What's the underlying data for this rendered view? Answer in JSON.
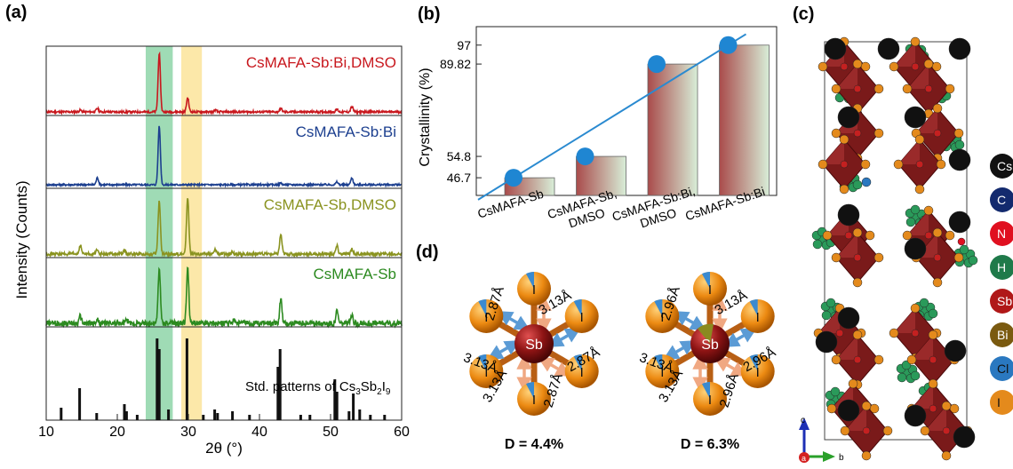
{
  "panel_a": {
    "label": "(a)",
    "ylabel": "Intensity (Counts)",
    "xlabel": "2θ (°)",
    "xticks": [
      "10",
      "20",
      "30",
      "40",
      "50",
      "60"
    ],
    "traces": [
      {
        "name": "CsMAFA-Sb:Bi,DMSO",
        "color": "#c8181e"
      },
      {
        "name": "CsMAFA-Sb:Bi",
        "color": "#1c3f8f"
      },
      {
        "name": "CsMAFA-Sb,DMSO",
        "color": "#8a9320"
      },
      {
        "name": "CsMAFA-Sb",
        "color": "#2c8a20"
      }
    ],
    "std_label_pre": "Std. patterns of Cs",
    "std_sub1": "3",
    "std_mid": "Sb",
    "std_sub2": "2",
    "std_post": "I",
    "std_sub3": "9"
  },
  "chart_data": {
    "type": "bar",
    "title": "",
    "ylabel": "Crystallinity (%)",
    "xlabel": "",
    "categories": [
      "CsMAFA-Sb",
      "CsMAFA-Sb, DMSO",
      "CsMAFA-Sb:Bi, DMSO",
      "CsMAFA-Sb:Bi"
    ],
    "values": [
      46.7,
      54.8,
      89.82,
      97
    ],
    "yticks": [
      "46.7",
      "54.8",
      "89.82",
      "97"
    ],
    "ylim": [
      40,
      104
    ],
    "overlay": "line with circular markers through bar tops"
  },
  "panel_b": {
    "label": "(b)"
  },
  "panel_c": {
    "label": "(c)",
    "legend": [
      {
        "sym": "Cs",
        "color": "#111111"
      },
      {
        "sym": "C",
        "color": "#132a6e"
      },
      {
        "sym": "N",
        "color": "#e01020"
      },
      {
        "sym": "H",
        "color": "#1f7a4a"
      },
      {
        "sym": "Sb",
        "color": "#b01818"
      },
      {
        "sym": "Bi",
        "color": "#7a5a10"
      },
      {
        "sym": "Cl",
        "color": "#2a78c0"
      },
      {
        "sym": "I",
        "color": "#e48a1c"
      }
    ],
    "axis_c": "c",
    "axis_a": "a",
    "axis_b": "b"
  },
  "panel_d": {
    "label": "(d)",
    "left": {
      "center": "Sb",
      "atom": "I",
      "long": "3.13Å",
      "short": "2.87Å",
      "caption": "D = 4.4%"
    },
    "right": {
      "center": "Sb",
      "atom": "I",
      "long": "3.13Å",
      "short": "2.96Å",
      "caption": "D = 6.3%"
    }
  }
}
